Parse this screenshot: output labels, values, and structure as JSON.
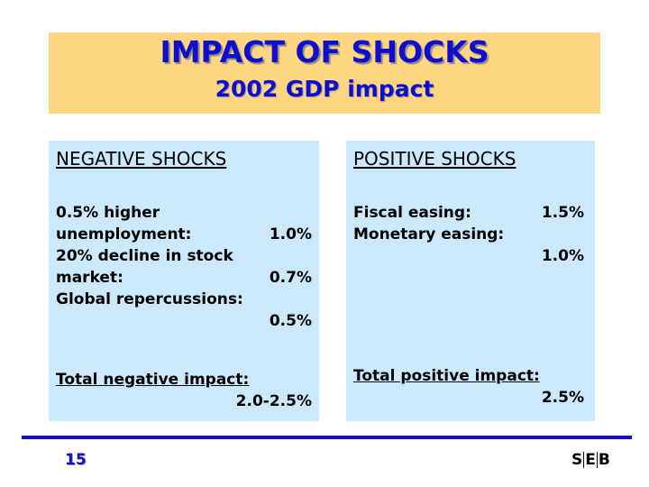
{
  "header": {
    "title": "IMPACT OF SHOCKS",
    "subtitle": "2002 GDP impact"
  },
  "negative": {
    "heading": "NEGATIVE SHOCKS",
    "items": [
      {
        "label_line1": "0.5% higher",
        "label_line2": "unemployment:",
        "value": "1.0%"
      },
      {
        "label_line1": "20% decline in stock",
        "label_line2": "market:",
        "value": "0.7%"
      },
      {
        "label_line1": "Global repercussions:",
        "value": "0.5%"
      }
    ],
    "total_label": "Total negative impact:",
    "total_value": "2.0-2.5%"
  },
  "positive": {
    "heading": "POSITIVE SHOCKS",
    "items": [
      {
        "label": "Fiscal easing:",
        "value": "1.5%"
      },
      {
        "label": "Monetary easing:",
        "value": "1.0%"
      }
    ],
    "total_label": "Total positive impact:",
    "total_value": "2.5%"
  },
  "footer": {
    "page_number": "15",
    "logo": {
      "letters": [
        "S",
        "E",
        "B"
      ]
    }
  },
  "colors": {
    "header_bg": "#fed581",
    "panel_bg": "#cce9fb",
    "accent_blue": "#0e0ecc",
    "text": "#000000"
  }
}
